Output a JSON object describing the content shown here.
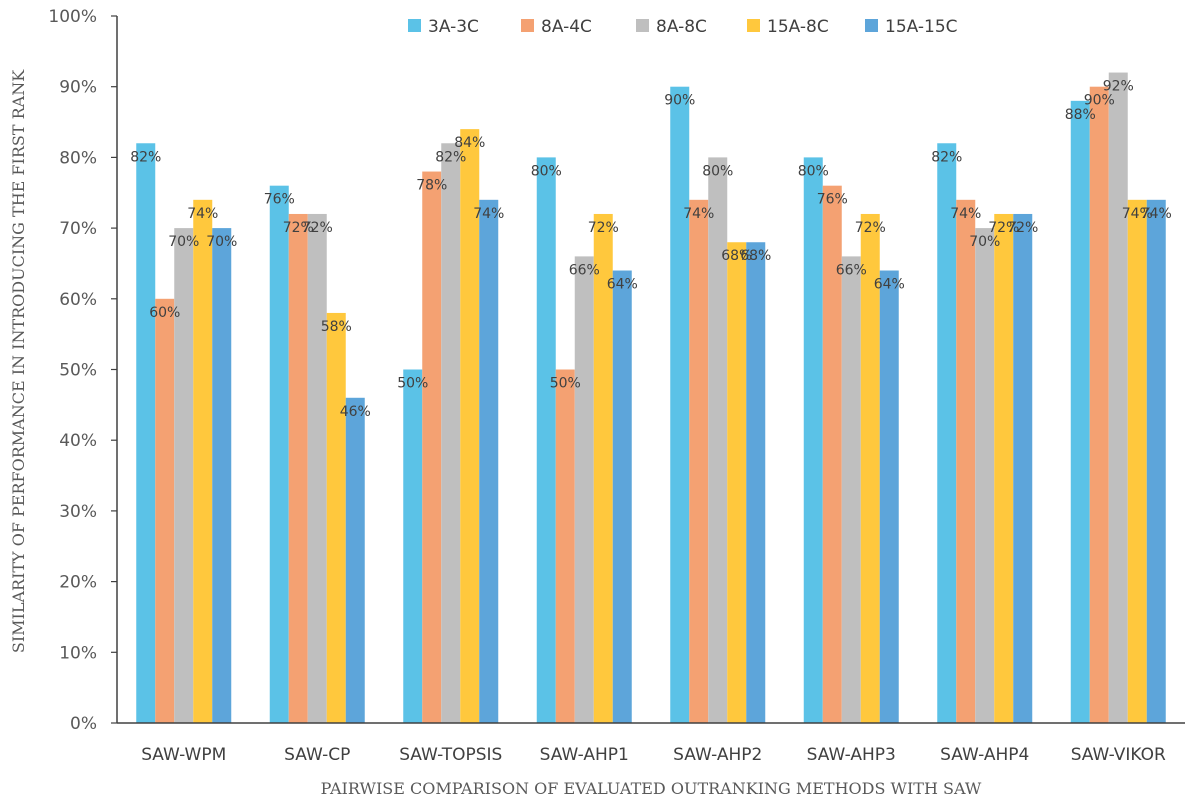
{
  "chart_data": {
    "type": "bar",
    "categories": [
      "SAW-WPM",
      "SAW-CP",
      "SAW-TOPSIS",
      "SAW-AHP1",
      "SAW-AHP2",
      "SAW-AHP3",
      "SAW-AHP4",
      "SAW-VIKOR"
    ],
    "series": [
      {
        "name": "3A-3C",
        "color": "#5BC2E7",
        "values": [
          82,
          76,
          50,
          80,
          90,
          80,
          82,
          88
        ]
      },
      {
        "name": "8A-4C",
        "color": "#F4A172",
        "values": [
          60,
          72,
          78,
          50,
          74,
          76,
          74,
          90
        ]
      },
      {
        "name": "8A-8C",
        "color": "#BFBFBF",
        "values": [
          70,
          72,
          82,
          66,
          80,
          66,
          70,
          92
        ]
      },
      {
        "name": "15A-8C",
        "color": "#FFC83D",
        "values": [
          74,
          58,
          84,
          72,
          68,
          72,
          72,
          74
        ]
      },
      {
        "name": "15A-15C",
        "color": "#5DA5DA",
        "values": [
          70,
          46,
          74,
          64,
          68,
          64,
          72,
          74
        ]
      }
    ],
    "value_suffix": "%",
    "ylim": [
      0,
      100
    ],
    "yticks": [
      "0%",
      "10%",
      "20%",
      "30%",
      "40%",
      "50%",
      "60%",
      "70%",
      "80%",
      "90%",
      "100%"
    ],
    "xlabel": "PAIRWISE COMPARISON OF EVALUATED OUTRANKING METHODS WITH SAW",
    "ylabel": "SIMILARITY OF PERFORMANCE IN INTRODUCING THE FIRST RANK",
    "legend_position": "top",
    "grid": false
  }
}
